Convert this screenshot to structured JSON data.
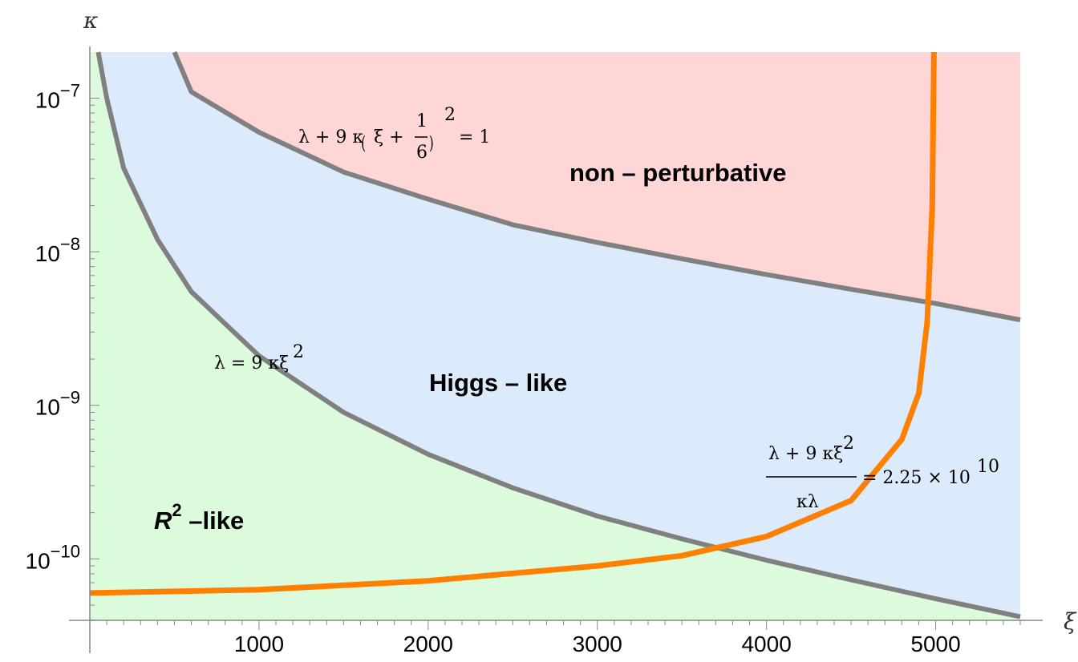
{
  "chart_data": {
    "type": "area",
    "xlabel": "ξ",
    "ylabel": "κ",
    "xlim": [
      0,
      5500
    ],
    "ylim_log10": [
      -10.4,
      -6.7
    ],
    "y_scale": "log",
    "x_ticks": [
      1000,
      2000,
      3000,
      4000,
      5000
    ],
    "x_tick_labels": [
      "1000",
      "2000",
      "3000",
      "4000",
      "5000"
    ],
    "y_ticks": [
      -7,
      -8,
      -9,
      -10
    ],
    "y_tick_labels": [
      {
        "base": "10",
        "exp": "−7"
      },
      {
        "base": "10",
        "exp": "−8"
      },
      {
        "base": "10",
        "exp": "−9"
      },
      {
        "base": "10",
        "exp": "−10"
      }
    ],
    "series": [
      {
        "curve": "nonperturbative-boundary",
        "color": "#808080",
        "points": [
          [
            500,
            2.3e-07
          ],
          [
            600,
            1.1e-07
          ],
          [
            1000,
            6e-08
          ],
          [
            1500,
            3.3e-08
          ],
          [
            2000,
            2.2e-08
          ],
          [
            2500,
            1.5e-08
          ],
          [
            3000,
            1.15e-08
          ],
          [
            3500,
            9e-09
          ],
          [
            4000,
            7.1e-09
          ],
          [
            4500,
            5.7e-09
          ],
          [
            5000,
            4.6e-09
          ],
          [
            5500,
            3.6e-09
          ]
        ]
      },
      {
        "curve": "higgs-r2-boundary",
        "color": "#808080",
        "points": [
          [
            50,
            2.5e-07
          ],
          [
            100,
            1e-07
          ],
          [
            200,
            3.5e-08
          ],
          [
            400,
            1.2e-08
          ],
          [
            600,
            5.5e-09
          ],
          [
            1000,
            2.1e-09
          ],
          [
            1500,
            9e-10
          ],
          [
            2000,
            4.8e-10
          ],
          [
            2500,
            2.9e-10
          ],
          [
            3000,
            1.9e-10
          ],
          [
            3500,
            1.35e-10
          ],
          [
            4000,
            9.8e-11
          ],
          [
            4500,
            7.3e-11
          ],
          [
            5000,
            5.5e-11
          ],
          [
            5500,
            4.2e-11
          ]
        ]
      },
      {
        "curve": "constraint-2.25e10",
        "color": "#ff8000",
        "points": [
          [
            0,
            6e-11
          ],
          [
            1000,
            6.3e-11
          ],
          [
            2000,
            7.2e-11
          ],
          [
            3000,
            9e-11
          ],
          [
            3500,
            1.05e-10
          ],
          [
            4000,
            1.4e-10
          ],
          [
            4500,
            2.4e-10
          ],
          [
            4800,
            6e-10
          ],
          [
            4900,
            1.2e-09
          ],
          [
            4950,
            3.5e-09
          ],
          [
            4980,
            2e-08
          ],
          [
            4990,
            2.5e-07
          ]
        ]
      }
    ],
    "regions": [
      {
        "label": "non – perturbative",
        "color": "#ffd6d6"
      },
      {
        "label": "Higgs – like",
        "color": "#dcebfb"
      },
      {
        "label": "R",
        "label_sup": "2",
        "label_suffix": " –like",
        "color": "#dcfbdc"
      }
    ],
    "annotations": {
      "upper_curve": {
        "lhs": "λ + 9 κ",
        "paren_open": "(",
        "xi": "ξ +",
        "frac_num": "1",
        "frac_den": "6",
        "paren_close": ")",
        "sup": "2",
        "rhs": "= 1"
      },
      "lower_curve": {
        "lhs": "λ = 9 κξ",
        "sup": "2"
      },
      "orange_curve": {
        "num": "λ + 9 κξ",
        "num_sup": "2",
        "den": "κλ",
        "rhs": "= 2.25 × 10",
        "rhs_sup": "10"
      }
    }
  }
}
